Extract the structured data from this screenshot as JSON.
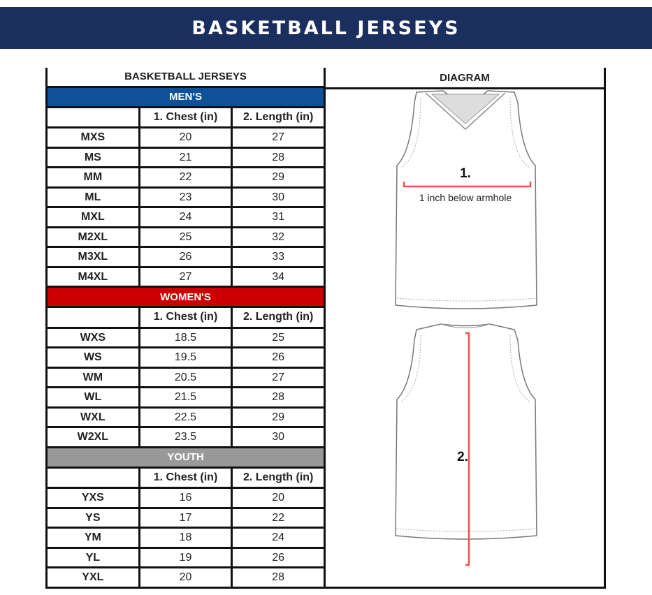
{
  "banner_title": "BASKETBALL JERSEYS",
  "table_title": "BASKETBALL JERSEYS",
  "diagram_title": "DIAGRAM",
  "columns": [
    "1. Chest (in)",
    "2. Length (in)"
  ],
  "sections": [
    {
      "label": "MEN'S",
      "color": "#0f5198",
      "rows": [
        [
          "MXS",
          "20",
          "27"
        ],
        [
          "MS",
          "21",
          "28"
        ],
        [
          "MM",
          "22",
          "29"
        ],
        [
          "ML",
          "23",
          "30"
        ],
        [
          "MXL",
          "24",
          "31"
        ],
        [
          "M2XL",
          "25",
          "32"
        ],
        [
          "M3XL",
          "26",
          "33"
        ],
        [
          "M4XL",
          "27",
          "34"
        ]
      ]
    },
    {
      "label": "WOMEN'S",
      "color": "#cc0000",
      "rows": [
        [
          "WXS",
          "18.5",
          "25"
        ],
        [
          "WS",
          "19.5",
          "26"
        ],
        [
          "WM",
          "20.5",
          "27"
        ],
        [
          "WL",
          "21.5",
          "28"
        ],
        [
          "WXL",
          "22.5",
          "29"
        ],
        [
          "W2XL",
          "23.5",
          "30"
        ]
      ]
    },
    {
      "label": "YOUTH",
      "color": "#999999",
      "rows": [
        [
          "YXS",
          "16",
          "20"
        ],
        [
          "YS",
          "17",
          "22"
        ],
        [
          "YM",
          "18",
          "24"
        ],
        [
          "YL",
          "19",
          "26"
        ],
        [
          "YXL",
          "20",
          "28"
        ]
      ]
    }
  ],
  "diagram": {
    "front_marker": "1.",
    "front_note": "1 inch below armhole",
    "back_marker": "2.",
    "measure_color": "#f05050"
  }
}
